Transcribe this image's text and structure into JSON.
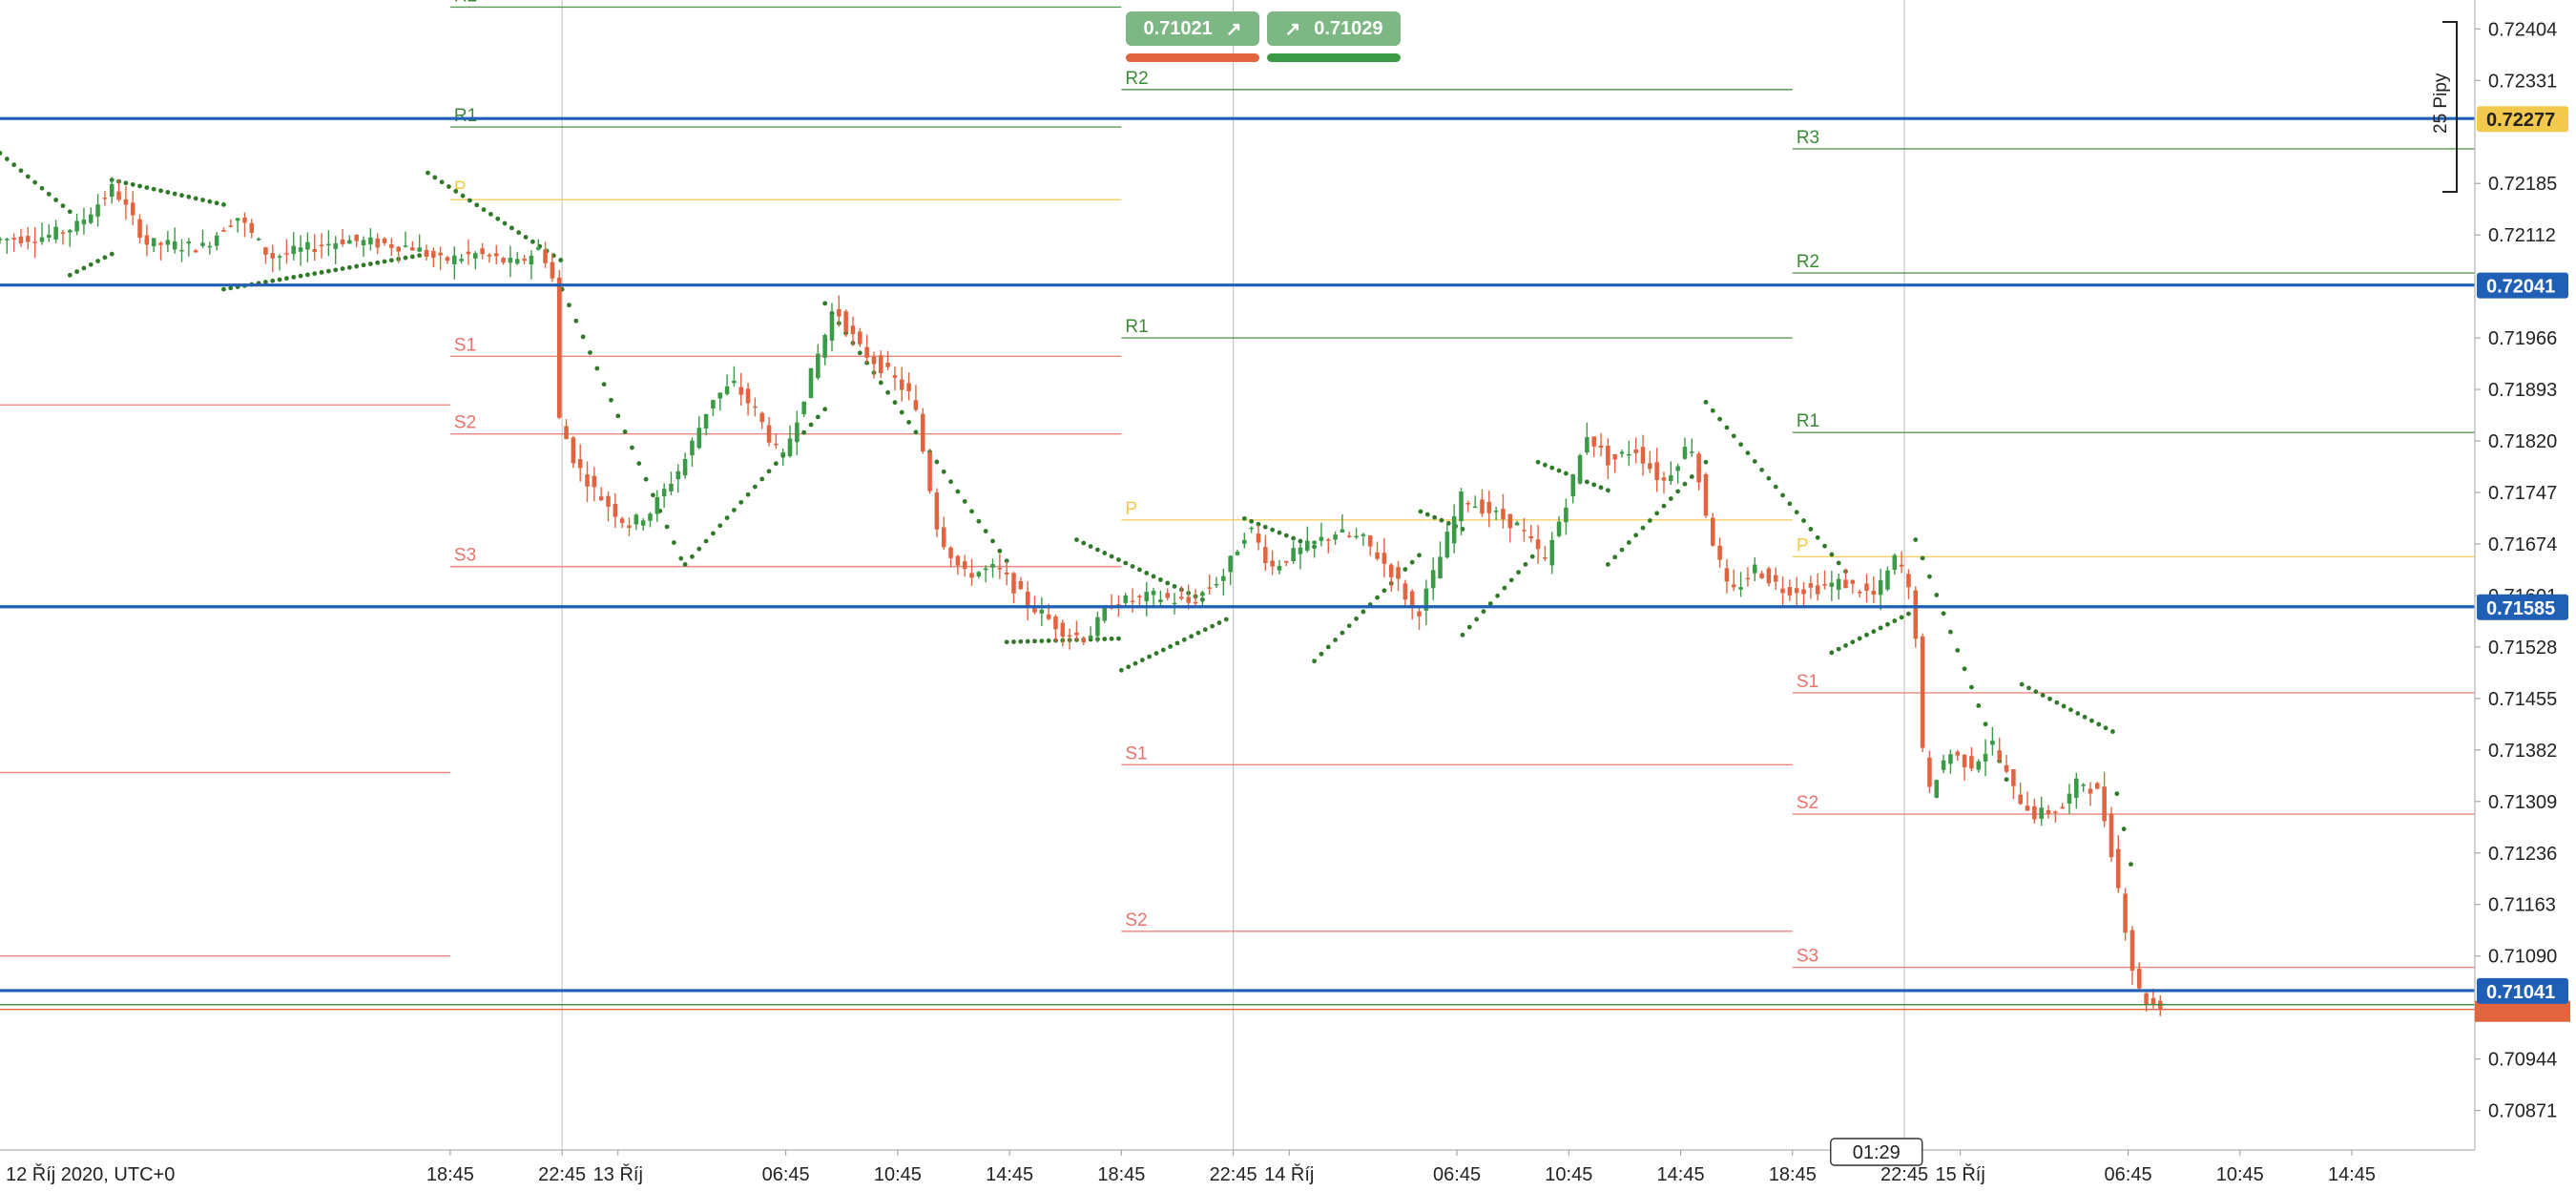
{
  "chart_data": {
    "type": "candlestick",
    "symbol_timeframe": "15-minute candles",
    "x_axis": {
      "start_label": "12 Říj 2020, UTC+0",
      "ticks": [
        {
          "label": "18:45",
          "t": 1.6
        },
        {
          "label": "22:45",
          "t": 5.6
        },
        {
          "label": "13 Říj",
          "t": 7.6
        },
        {
          "label": "06:45",
          "t": 13.6
        },
        {
          "label": "10:45",
          "t": 17.6
        },
        {
          "label": "14:45",
          "t": 21.6
        },
        {
          "label": "18:45",
          "t": 25.6
        },
        {
          "label": "22:45",
          "t": 29.6
        },
        {
          "label": "14 Říj",
          "t": 31.6
        },
        {
          "label": "06:45",
          "t": 37.6
        },
        {
          "label": "10:45",
          "t": 41.6
        },
        {
          "label": "14:45",
          "t": 45.6
        },
        {
          "label": "18:45",
          "t": 49.6
        },
        {
          "label": "22:45",
          "t": 53.6
        },
        {
          "label": "15 Říj",
          "t": 55.6
        },
        {
          "label": "06:45",
          "t": 61.6
        },
        {
          "label": "10:45",
          "t": 65.6
        },
        {
          "label": "14:45",
          "t": 69.6
        }
      ],
      "range_hours": [
        -14.5,
        74.0
      ],
      "crosshair_time_label": "01:29"
    },
    "y_axis": {
      "ticks": [
        "0.72404",
        "0.72331",
        "0.72185",
        "0.72112",
        "0.71966",
        "0.71893",
        "0.71820",
        "0.71747",
        "0.71674",
        "0.71601",
        "0.71528",
        "0.71455",
        "0.71382",
        "0.71309",
        "0.71236",
        "0.71163",
        "0.71090",
        "0.70944",
        "0.70871"
      ],
      "range": [
        0.70815,
        0.72445
      ]
    },
    "horizontal_levels": [
      {
        "price": 0.72277,
        "label": "0.72277",
        "label_color": "#f2c94c",
        "line_color": "#1f5fb5"
      },
      {
        "price": 0.72041,
        "label": "0.72041",
        "label_color": "#1f5fb5",
        "line_color": "#1f5fb5"
      },
      {
        "price": 0.71585,
        "label": "0.71585",
        "label_color": "#1f5fb5",
        "line_color": "#1f5fb5"
      },
      {
        "price": 0.71041,
        "label": "0.71041",
        "label_color": "#1f5fb5",
        "line_color": "#1f5fb5"
      }
    ],
    "current_price_label": {
      "price": 0.71021,
      "color": "#e2643f"
    },
    "pivot_periods": [
      {
        "t_start": -14.5,
        "t_end": 1.6,
        "levels": [
          {
            "name": "S1",
            "price": 0.71871,
            "show_label": false
          },
          {
            "name": "S2",
            "price": 0.7135,
            "show_label": false
          },
          {
            "name": "S3",
            "price": 0.7109,
            "show_label": false
          }
        ]
      },
      {
        "t_start": 1.6,
        "t_end": 25.6,
        "levels": [
          {
            "name": "R2",
            "price": 0.72435
          },
          {
            "name": "R1",
            "price": 0.72265
          },
          {
            "name": "P",
            "price": 0.72162
          },
          {
            "name": "S1",
            "price": 0.7194
          },
          {
            "name": "S2",
            "price": 0.7183
          },
          {
            "name": "S3",
            "price": 0.71642
          }
        ]
      },
      {
        "t_start": 25.6,
        "t_end": 49.6,
        "levels": [
          {
            "name": "R2",
            "price": 0.72318
          },
          {
            "name": "R1",
            "price": 0.71966
          },
          {
            "name": "P",
            "price": 0.71708
          },
          {
            "name": "S1",
            "price": 0.71361
          },
          {
            "name": "S2",
            "price": 0.71125
          }
        ]
      },
      {
        "t_start": 49.6,
        "t_end": 74.0,
        "levels": [
          {
            "name": "R3",
            "price": 0.72234
          },
          {
            "name": "R2",
            "price": 0.72058
          },
          {
            "name": "R1",
            "price": 0.71832
          },
          {
            "name": "P",
            "price": 0.71656
          },
          {
            "name": "S1",
            "price": 0.71463
          },
          {
            "name": "S2",
            "price": 0.71291
          },
          {
            "name": "S3",
            "price": 0.71074
          }
        ]
      }
    ],
    "parabolic_sar": [
      {
        "from": -14.5,
        "to": -12.0,
        "start": 0.72228,
        "end": 0.72145
      },
      {
        "from": -12.0,
        "to": -10.5,
        "start": 0.72055,
        "end": 0.72085
      },
      {
        "from": -10.5,
        "to": -6.5,
        "start": 0.7219,
        "end": 0.72155
      },
      {
        "from": -6.5,
        "to": 0.8,
        "start": 0.72035,
        "end": 0.72085
      },
      {
        "from": 0.8,
        "to": 5.6,
        "start": 0.722,
        "end": 0.72075
      },
      {
        "from": 5.6,
        "to": 10.0,
        "start": 0.72035,
        "end": 0.7164
      },
      {
        "from": 10.0,
        "to": 15.0,
        "start": 0.71645,
        "end": 0.71865
      },
      {
        "from": 15.0,
        "to": 21.5,
        "start": 0.72015,
        "end": 0.7165
      },
      {
        "from": 21.5,
        "to": 25.6,
        "start": 0.71535,
        "end": 0.7154
      },
      {
        "from": 24.0,
        "to": 28.5,
        "start": 0.7168,
        "end": 0.71595
      },
      {
        "from": 25.6,
        "to": 29.5,
        "start": 0.71495,
        "end": 0.7157
      },
      {
        "from": 30.0,
        "to": 32.5,
        "start": 0.7171,
        "end": 0.7167
      },
      {
        "from": 32.5,
        "to": 36.3,
        "start": 0.71508,
        "end": 0.7166
      },
      {
        "from": 36.3,
        "to": 37.8,
        "start": 0.7172,
        "end": 0.71695
      },
      {
        "from": 37.8,
        "to": 40.5,
        "start": 0.71545,
        "end": 0.71665
      },
      {
        "from": 40.5,
        "to": 43.0,
        "start": 0.7179,
        "end": 0.7175
      },
      {
        "from": 43.0,
        "to": 46.5,
        "start": 0.71645,
        "end": 0.7179
      },
      {
        "from": 46.5,
        "to": 51.5,
        "start": 0.71875,
        "end": 0.71635
      },
      {
        "from": 51.0,
        "to": 54.0,
        "start": 0.7152,
        "end": 0.7158
      },
      {
        "from": 54.0,
        "to": 57.3,
        "start": 0.7168,
        "end": 0.71335
      },
      {
        "from": 57.8,
        "to": 61.2,
        "start": 0.71475,
        "end": 0.71405
      },
      {
        "from": 61.2,
        "to": 61.8,
        "start": 0.7132,
        "end": 0.712
      }
    ],
    "candle_path": [
      {
        "t": -14.5,
        "p": 0.72105
      },
      {
        "t": -12.6,
        "p": 0.7211
      },
      {
        "t": -11.5,
        "p": 0.72125
      },
      {
        "t": -10.2,
        "p": 0.7218
      },
      {
        "t": -9.0,
        "p": 0.721
      },
      {
        "t": -7.0,
        "p": 0.72095
      },
      {
        "t": -5.8,
        "p": 0.7214
      },
      {
        "t": -4.6,
        "p": 0.7208
      },
      {
        "t": -2.0,
        "p": 0.72105
      },
      {
        "t": 0.5,
        "p": 0.72095
      },
      {
        "t": 1.5,
        "p": 0.72075
      },
      {
        "t": 2.8,
        "p": 0.72085
      },
      {
        "t": 4.2,
        "p": 0.7207
      },
      {
        "t": 5.1,
        "p": 0.72095
      },
      {
        "t": 5.5,
        "p": 0.7205
      },
      {
        "t": 5.75,
        "p": 0.7185
      },
      {
        "t": 6.3,
        "p": 0.7179
      },
      {
        "t": 7.0,
        "p": 0.7175
      },
      {
        "t": 8.2,
        "p": 0.717
      },
      {
        "t": 9.0,
        "p": 0.7172
      },
      {
        "t": 10.2,
        "p": 0.7179
      },
      {
        "t": 11.2,
        "p": 0.7188
      },
      {
        "t": 12.0,
        "p": 0.719
      },
      {
        "t": 12.8,
        "p": 0.7186
      },
      {
        "t": 13.7,
        "p": 0.7179
      },
      {
        "t": 14.8,
        "p": 0.7192
      },
      {
        "t": 15.6,
        "p": 0.7201
      },
      {
        "t": 16.5,
        "p": 0.7195
      },
      {
        "t": 17.4,
        "p": 0.7192
      },
      {
        "t": 18.4,
        "p": 0.7188
      },
      {
        "t": 19.3,
        "p": 0.7169
      },
      {
        "t": 20.2,
        "p": 0.7163
      },
      {
        "t": 21.4,
        "p": 0.7164
      },
      {
        "t": 22.5,
        "p": 0.7159
      },
      {
        "t": 23.8,
        "p": 0.7155
      },
      {
        "t": 24.6,
        "p": 0.7154
      },
      {
        "t": 25.5,
        "p": 0.7159
      },
      {
        "t": 27.0,
        "p": 0.716
      },
      {
        "t": 28.3,
        "p": 0.7159
      },
      {
        "t": 29.5,
        "p": 0.7163
      },
      {
        "t": 30.4,
        "p": 0.717
      },
      {
        "t": 31.2,
        "p": 0.7164
      },
      {
        "t": 32.0,
        "p": 0.7166
      },
      {
        "t": 33.5,
        "p": 0.7169
      },
      {
        "t": 34.5,
        "p": 0.7168
      },
      {
        "t": 35.6,
        "p": 0.7163
      },
      {
        "t": 36.4,
        "p": 0.7157
      },
      {
        "t": 37.2,
        "p": 0.7165
      },
      {
        "t": 38.0,
        "p": 0.7174
      },
      {
        "t": 39.0,
        "p": 0.7172
      },
      {
        "t": 40.0,
        "p": 0.717
      },
      {
        "t": 41.0,
        "p": 0.7165
      },
      {
        "t": 41.8,
        "p": 0.7174
      },
      {
        "t": 42.5,
        "p": 0.7183
      },
      {
        "t": 43.3,
        "p": 0.7179
      },
      {
        "t": 44.2,
        "p": 0.7181
      },
      {
        "t": 45.2,
        "p": 0.7176
      },
      {
        "t": 46.2,
        "p": 0.7182
      },
      {
        "t": 46.9,
        "p": 0.7169
      },
      {
        "t": 47.6,
        "p": 0.716
      },
      {
        "t": 48.5,
        "p": 0.7164
      },
      {
        "t": 49.5,
        "p": 0.7161
      },
      {
        "t": 50.6,
        "p": 0.7161
      },
      {
        "t": 51.6,
        "p": 0.7162
      },
      {
        "t": 52.8,
        "p": 0.716
      },
      {
        "t": 53.6,
        "p": 0.7166
      },
      {
        "t": 54.2,
        "p": 0.7158
      },
      {
        "t": 54.6,
        "p": 0.7131
      },
      {
        "t": 55.4,
        "p": 0.7138
      },
      {
        "t": 56.2,
        "p": 0.7136
      },
      {
        "t": 57.0,
        "p": 0.7139
      },
      {
        "t": 57.8,
        "p": 0.7132
      },
      {
        "t": 58.5,
        "p": 0.7129
      },
      {
        "t": 59.5,
        "p": 0.713
      },
      {
        "t": 60.1,
        "p": 0.7134
      },
      {
        "t": 60.8,
        "p": 0.7132
      },
      {
        "t": 61.3,
        "p": 0.7123
      },
      {
        "t": 61.8,
        "p": 0.7112
      },
      {
        "t": 62.1,
        "p": 0.7105
      },
      {
        "t": 62.4,
        "p": 0.7103
      },
      {
        "t": 62.75,
        "p": 0.71021
      }
    ],
    "colors": {
      "up": "#3b9a46",
      "down": "#e2643f",
      "blue_level": "#1f5fb5",
      "support": "#e8736b",
      "resistance": "#3a8a36",
      "pivot": "#f2c94c",
      "sar": "#2f7a27",
      "grid": "#e0e0e0",
      "axis_text": "#222222"
    }
  },
  "trade": {
    "sell_price": "0.71021",
    "buy_price": "0.71029",
    "sell_arrow": "↗",
    "buy_arrow": "↗"
  },
  "measure": {
    "label": "25 Pipy"
  }
}
